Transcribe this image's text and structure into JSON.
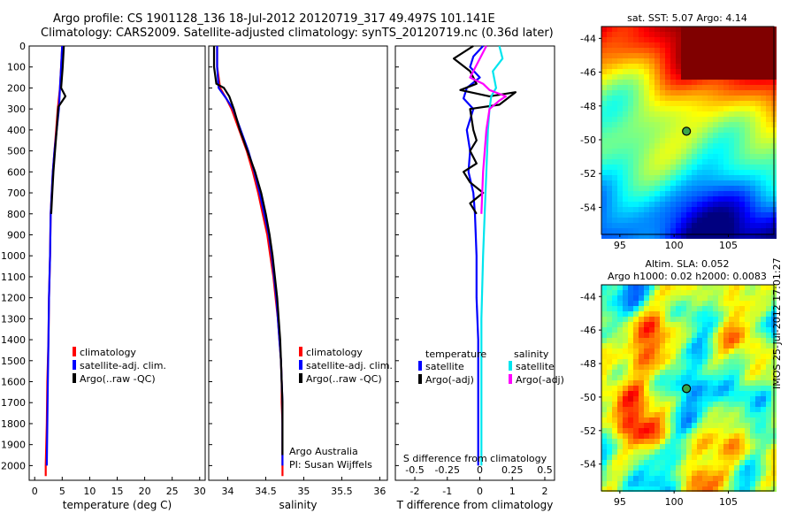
{
  "header": {
    "title_line1": "Argo profile: CS 1901128_136 18-Jul-2012 20120719_317 49.497S 101.141E",
    "title_line2": "Climatology: CARS2009. Satellite-adjusted climatology: synTS_20120719.nc (0.36d later)"
  },
  "stamp": "IMOS 25-Jul-2012 17:01:27",
  "depth_ticks": [
    0,
    100,
    200,
    300,
    400,
    500,
    600,
    700,
    800,
    900,
    1000,
    1100,
    1200,
    1300,
    1400,
    1500,
    1600,
    1700,
    1800,
    1900,
    2000
  ],
  "colors": {
    "climatology": "#ff0000",
    "satellite": "#0000ff",
    "argo": "#000000",
    "sal_satellite": "#00e5ee",
    "sal_argo": "#ff00ff"
  },
  "chart_data": [
    {
      "type": "line",
      "id": "temperature",
      "xlabel": "temperature (deg C)",
      "xlim": [
        -1,
        31
      ],
      "ylim": [
        2070,
        0
      ],
      "xticks": [
        0,
        5,
        10,
        15,
        20,
        25,
        30
      ],
      "legend": [
        "climatology",
        "satellite-adj. clim.",
        "Argo(..raw -QC)"
      ],
      "series": [
        {
          "name": "climatology",
          "color": "#ff0000",
          "points": [
            [
              5.0,
              0
            ],
            [
              4.8,
              100
            ],
            [
              4.6,
              200
            ],
            [
              4.2,
              300
            ],
            [
              3.9,
              400
            ],
            [
              3.6,
              500
            ],
            [
              3.3,
              600
            ],
            [
              3.1,
              700
            ],
            [
              2.9,
              800
            ],
            [
              2.8,
              1000
            ],
            [
              2.6,
              1200
            ],
            [
              2.5,
              1400
            ],
            [
              2.3,
              1600
            ],
            [
              2.2,
              1800
            ],
            [
              2.0,
              2000
            ],
            [
              2.0,
              2050
            ]
          ]
        },
        {
          "name": "satellite-adj. clim.",
          "color": "#0000ff",
          "points": [
            [
              5.0,
              0
            ],
            [
              4.8,
              100
            ],
            [
              4.6,
              200
            ],
            [
              4.4,
              300
            ],
            [
              4.0,
              400
            ],
            [
              3.6,
              500
            ],
            [
              3.3,
              600
            ],
            [
              3.1,
              700
            ],
            [
              2.9,
              800
            ],
            [
              2.8,
              1000
            ],
            [
              2.6,
              1200
            ],
            [
              2.5,
              1400
            ],
            [
              2.4,
              1600
            ],
            [
              2.3,
              1800
            ],
            [
              2.2,
              2000
            ]
          ]
        },
        {
          "name": "Argo(..raw -QC)",
          "color": "#000000",
          "points": [
            [
              5.3,
              0
            ],
            [
              5.1,
              100
            ],
            [
              4.8,
              200
            ],
            [
              5.6,
              240
            ],
            [
              4.3,
              290
            ],
            [
              4.0,
              400
            ],
            [
              3.7,
              500
            ],
            [
              3.4,
              600
            ],
            [
              3.2,
              700
            ],
            [
              3.0,
              800
            ]
          ]
        }
      ]
    },
    {
      "type": "line",
      "id": "salinity",
      "xlabel": "salinity",
      "xlim": [
        33.75,
        36.1
      ],
      "ylim": [
        2070,
        0
      ],
      "xticks": [
        34,
        34.5,
        35,
        35.5,
        36
      ],
      "legend": [
        "climatology",
        "satellite-adj. clim.",
        "Argo(..raw -QC)"
      ],
      "annotations": [
        "Argo Australia",
        "PI: Susan Wijffels"
      ],
      "series": [
        {
          "name": "climatology",
          "color": "#ff0000",
          "points": [
            [
              33.86,
              0
            ],
            [
              33.86,
              100
            ],
            [
              33.9,
              200
            ],
            [
              33.98,
              250
            ],
            [
              34.05,
              300
            ],
            [
              34.15,
              400
            ],
            [
              34.25,
              500
            ],
            [
              34.33,
              600
            ],
            [
              34.4,
              700
            ],
            [
              34.46,
              800
            ],
            [
              34.52,
              900
            ],
            [
              34.56,
              1000
            ],
            [
              34.6,
              1100
            ],
            [
              34.63,
              1200
            ],
            [
              34.66,
              1300
            ],
            [
              34.68,
              1400
            ],
            [
              34.7,
              1500
            ],
            [
              34.71,
              1600
            ],
            [
              34.71,
              1700
            ],
            [
              34.72,
              1800
            ],
            [
              34.72,
              1900
            ],
            [
              34.72,
              2050
            ]
          ]
        },
        {
          "name": "satellite-adj. clim.",
          "color": "#0000ff",
          "points": [
            [
              33.86,
              0
            ],
            [
              33.86,
              100
            ],
            [
              33.88,
              200
            ],
            [
              33.98,
              250
            ],
            [
              34.07,
              300
            ],
            [
              34.17,
              400
            ],
            [
              34.27,
              500
            ],
            [
              34.35,
              600
            ],
            [
              34.42,
              700
            ],
            [
              34.48,
              800
            ],
            [
              34.54,
              900
            ],
            [
              34.58,
              1000
            ],
            [
              34.61,
              1100
            ],
            [
              34.64,
              1200
            ],
            [
              34.66,
              1300
            ],
            [
              34.68,
              1400
            ],
            [
              34.7,
              1500
            ],
            [
              34.71,
              1600
            ],
            [
              34.72,
              1700
            ],
            [
              34.72,
              1800
            ],
            [
              34.72,
              1900
            ],
            [
              34.72,
              2000
            ]
          ]
        },
        {
          "name": "Argo(..raw -QC)",
          "color": "#000000",
          "points": [
            [
              33.82,
              0
            ],
            [
              33.82,
              100
            ],
            [
              33.85,
              180
            ],
            [
              33.95,
              200
            ],
            [
              34.02,
              240
            ],
            [
              34.08,
              300
            ],
            [
              34.16,
              400
            ],
            [
              34.26,
              500
            ],
            [
              34.36,
              600
            ],
            [
              34.44,
              700
            ],
            [
              34.5,
              800
            ],
            [
              34.55,
              900
            ],
            [
              34.59,
              1000
            ],
            [
              34.62,
              1100
            ],
            [
              34.65,
              1200
            ],
            [
              34.67,
              1300
            ],
            [
              34.69,
              1400
            ],
            [
              34.7,
              1500
            ],
            [
              34.71,
              1600
            ],
            [
              34.72,
              1700
            ],
            [
              34.72,
              1800
            ],
            [
              34.72,
              1900
            ],
            [
              34.72,
              1950
            ]
          ]
        }
      ]
    },
    {
      "type": "line",
      "id": "difference",
      "xlabel": "T difference from climatology",
      "xlabel_top": "S difference from climatology",
      "xlim": [
        -2.6,
        2.3
      ],
      "ylim": [
        2070,
        0
      ],
      "xticks": [
        -2,
        -1,
        0,
        1,
        2
      ],
      "xticks_top": [
        "-0.5",
        "-0.25",
        "0",
        "0.25",
        "0.5"
      ],
      "legend_temperature_title": "temperature",
      "legend_salinity_title": "salinity",
      "legend": [
        "satellite",
        "Argo(-adj)",
        "satellite",
        "Argo(-adj)"
      ],
      "series": [
        {
          "name": "satellite",
          "color": "#0000ff",
          "points": [
            [
              0.1,
              0
            ],
            [
              -0.2,
              50
            ],
            [
              -0.3,
              100
            ],
            [
              0.0,
              150
            ],
            [
              -0.4,
              200
            ],
            [
              -0.5,
              250
            ],
            [
              -0.2,
              300
            ],
            [
              -0.4,
              400
            ],
            [
              -0.3,
              500
            ],
            [
              -0.35,
              600
            ],
            [
              -0.2,
              700
            ],
            [
              -0.15,
              800
            ],
            [
              -0.1,
              1000
            ],
            [
              -0.1,
              1200
            ],
            [
              -0.05,
              1400
            ],
            [
              -0.05,
              1600
            ],
            [
              -0.05,
              1800
            ],
            [
              -0.05,
              2000
            ]
          ]
        },
        {
          "name": "Argo(-adj)",
          "color": "#000000",
          "points": [
            [
              -0.2,
              0
            ],
            [
              -0.8,
              60
            ],
            [
              -0.3,
              120
            ],
            [
              -0.1,
              180
            ],
            [
              -0.6,
              210
            ],
            [
              0.3,
              240
            ],
            [
              1.1,
              220
            ],
            [
              0.6,
              280
            ],
            [
              -0.3,
              300
            ],
            [
              -0.2,
              400
            ],
            [
              -0.1,
              450
            ],
            [
              -0.3,
              500
            ],
            [
              -0.1,
              560
            ],
            [
              -0.5,
              600
            ],
            [
              -0.3,
              650
            ],
            [
              0.1,
              700
            ],
            [
              -0.3,
              750
            ],
            [
              -0.1,
              800
            ]
          ]
        },
        {
          "name": "satellite",
          "color": "#00e5ee",
          "points": [
            [
              0.6,
              0
            ],
            [
              0.7,
              60
            ],
            [
              0.4,
              120
            ],
            [
              0.5,
              200
            ],
            [
              0.35,
              240
            ],
            [
              0.3,
              300
            ],
            [
              0.25,
              400
            ],
            [
              0.2,
              600
            ],
            [
              0.15,
              800
            ],
            [
              0.1,
              1000
            ],
            [
              0.05,
              1300
            ],
            [
              0.05,
              1600
            ],
            [
              0.05,
              2000
            ]
          ]
        },
        {
          "name": "Argo(-adj)",
          "color": "#ff00ff",
          "points": [
            [
              0.2,
              0
            ],
            [
              -0.3,
              150
            ],
            [
              0.1,
              180
            ],
            [
              0.3,
              210
            ],
            [
              0.8,
              240
            ],
            [
              0.6,
              260
            ],
            [
              0.3,
              300
            ],
            [
              0.2,
              400
            ],
            [
              0.1,
              600
            ],
            [
              0.05,
              800
            ]
          ]
        }
      ]
    },
    {
      "type": "heatmap",
      "id": "sst-map",
      "title": "sat. SST: 5.07 Argo: 4.14",
      "xticks": [
        95,
        100,
        105
      ],
      "yticks": [
        -44,
        -46,
        -48,
        -50,
        -52,
        -54
      ],
      "xlim": [
        93.3,
        109.2
      ],
      "ylim": [
        -55.6,
        -43.3
      ],
      "marker": [
        101.141,
        -49.497
      ]
    },
    {
      "type": "heatmap",
      "id": "sla-map",
      "title_line1": "Altim. SLA: 0.052",
      "title_line2": "Argo h1000: 0.02 h2000: 0.0083",
      "xticks": [
        95,
        100,
        105
      ],
      "yticks": [
        -44,
        -46,
        -48,
        -50,
        -52,
        -54
      ],
      "xlim": [
        93.3,
        109.2
      ],
      "ylim": [
        -55.6,
        -43.3
      ],
      "marker": [
        101.141,
        -49.497
      ]
    }
  ]
}
